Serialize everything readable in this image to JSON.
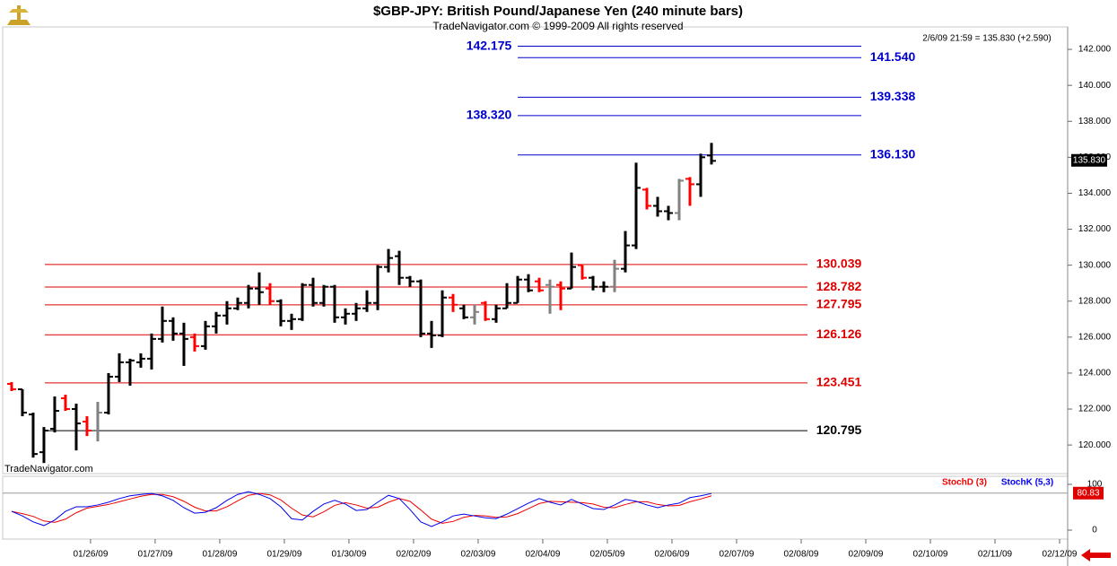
{
  "chart_data": [
    {
      "type": "ohlc",
      "title": "$GBP-JPY:  British Pound/Japanese Yen  (240 minute bars)",
      "subtitle": "TradeNavigator.com © 1999-2009 All rights reserved",
      "last_info": "2/6/09 21:59 = 135.830 (+2.590)",
      "watermark": "TradeNavigator.com",
      "x": [
        0,
        1,
        2,
        3,
        4,
        5,
        6,
        7,
        8,
        9,
        10,
        11,
        12,
        13,
        14,
        15,
        16,
        17,
        18,
        19,
        20,
        21,
        22,
        23,
        24,
        25,
        26,
        27,
        28,
        29,
        30,
        31,
        32,
        33,
        34,
        35,
        36,
        37,
        38,
        39,
        40,
        41,
        42,
        43,
        44,
        45,
        46,
        47,
        48,
        49,
        50,
        51,
        52,
        53,
        54,
        55,
        56,
        57,
        58,
        59,
        60,
        61,
        62,
        63,
        64,
        65
      ],
      "open": [
        123.4,
        123.1,
        121.7,
        119.6,
        120.9,
        122.6,
        122.0,
        121.3,
        120.8,
        121.8,
        123.8,
        124.6,
        124.6,
        124.8,
        125.9,
        126.9,
        126.2,
        126.0,
        125.5,
        126.6,
        127.2,
        127.6,
        127.9,
        128.7,
        128.7,
        128.0,
        126.9,
        127.0,
        128.9,
        127.9,
        128.8,
        127.1,
        127.3,
        127.6,
        127.9,
        129.9,
        130.5,
        129.3,
        129.1,
        126.2,
        126.1,
        128.2,
        127.6,
        127.1,
        127.9,
        127.0,
        127.6,
        127.9,
        129.2,
        129.1,
        128.9,
        128.9,
        128.7,
        130.0,
        129.3,
        128.8,
        128.8,
        129.8,
        131.1,
        134.2,
        133.3,
        133.0,
        132.9,
        134.8,
        134.5,
        136.1
      ],
      "high": [
        123.5,
        123.1,
        121.8,
        121.0,
        122.7,
        122.8,
        122.3,
        121.6,
        122.4,
        124.0,
        125.1,
        124.8,
        125.1,
        126.2,
        127.7,
        127.1,
        126.8,
        126.2,
        126.9,
        127.4,
        128.0,
        128.2,
        128.9,
        129.6,
        129.0,
        128.1,
        127.3,
        129.0,
        129.3,
        128.9,
        128.9,
        127.6,
        127.9,
        128.6,
        130.0,
        130.9,
        130.8,
        129.4,
        129.2,
        126.9,
        128.6,
        128.4,
        127.8,
        127.8,
        128.0,
        127.8,
        129.0,
        129.4,
        129.5,
        129.3,
        129.2,
        129.1,
        130.7,
        130.0,
        129.4,
        129.1,
        130.3,
        131.9,
        135.7,
        134.3,
        133.8,
        133.3,
        134.8,
        134.9,
        136.2,
        136.8
      ],
      "low": [
        123.0,
        121.6,
        119.3,
        119.0,
        120.7,
        121.9,
        119.7,
        120.5,
        120.2,
        121.7,
        123.5,
        123.3,
        124.3,
        124.2,
        125.7,
        125.8,
        124.4,
        125.2,
        125.3,
        126.2,
        126.7,
        127.5,
        127.6,
        127.8,
        127.8,
        126.6,
        126.4,
        126.9,
        127.7,
        127.7,
        126.8,
        126.7,
        126.9,
        127.4,
        127.5,
        129.6,
        128.9,
        128.8,
        126.0,
        125.4,
        126.0,
        127.4,
        127.0,
        126.7,
        126.9,
        126.8,
        127.6,
        127.9,
        128.5,
        128.5,
        127.3,
        127.5,
        128.7,
        129.2,
        128.6,
        128.5,
        128.5,
        129.6,
        130.9,
        133.1,
        132.7,
        132.5,
        132.5,
        133.3,
        133.8,
        135.6
      ],
      "close": [
        123.1,
        121.8,
        119.5,
        120.8,
        121.9,
        122.0,
        121.2,
        120.8,
        121.8,
        123.8,
        124.6,
        124.7,
        124.8,
        125.9,
        126.9,
        126.2,
        125.9,
        125.5,
        126.6,
        127.2,
        127.6,
        127.9,
        128.7,
        128.5,
        128.0,
        126.9,
        127.0,
        128.9,
        127.9,
        128.8,
        127.1,
        127.3,
        127.6,
        127.9,
        129.9,
        130.4,
        129.3,
        129.1,
        126.2,
        126.1,
        128.2,
        127.8,
        127.1,
        127.4,
        127.0,
        127.6,
        127.9,
        129.2,
        128.6,
        128.6,
        128.8,
        128.7,
        129.9,
        129.3,
        128.8,
        128.8,
        129.8,
        131.1,
        134.3,
        133.3,
        133.0,
        132.9,
        134.7,
        134.5,
        136.0,
        135.8
      ],
      "bar_colors": [
        "#ff0000",
        "#000000",
        "#000000",
        "#000000",
        "#000000",
        "#ff0000",
        "#000000",
        "#ff0000",
        "#808080",
        "#000000",
        "#000000",
        "#000000",
        "#000000",
        "#000000",
        "#000000",
        "#000000",
        "#000000",
        "#ff0000",
        "#000000",
        "#000000",
        "#000000",
        "#000000",
        "#000000",
        "#000000",
        "#ff0000",
        "#000000",
        "#000000",
        "#000000",
        "#000000",
        "#000000",
        "#000000",
        "#000000",
        "#000000",
        "#000000",
        "#000000",
        "#000000",
        "#000000",
        "#000000",
        "#000000",
        "#000000",
        "#000000",
        "#ff0000",
        "#000000",
        "#808080",
        "#ff0000",
        "#000000",
        "#000000",
        "#000000",
        "#000000",
        "#ff0000",
        "#808080",
        "#ff0000",
        "#000000",
        "#ff0000",
        "#000000",
        "#000000",
        "#808080",
        "#000000",
        "#000000",
        "#ff0000",
        "#000000",
        "#000000",
        "#808080",
        "#ff0000",
        "#000000",
        "#000000"
      ],
      "levels": [
        {
          "value": 142.175,
          "color": "#0000cc"
        },
        {
          "value": 141.54,
          "label": "141.540",
          "color": "#0000cc"
        },
        {
          "value": 139.338,
          "color": "#0000cc"
        },
        {
          "value": 138.32,
          "label": "138.320",
          "color": "#0000cc"
        },
        {
          "value": 136.13,
          "label": "136.130",
          "color": "#0000cc"
        },
        {
          "value": 130.039,
          "color": "#dd0000"
        },
        {
          "value": 128.782,
          "color": "#dd0000"
        },
        {
          "value": 127.795,
          "color": "#dd0000"
        },
        {
          "value": 126.126,
          "color": "#dd0000"
        },
        {
          "value": 123.451,
          "color": "#dd0000"
        },
        {
          "value": 120.795,
          "color": "#000000"
        }
      ],
      "last_price": {
        "value": 135.83,
        "label": "135.830"
      },
      "xlim": [
        -0.83,
        98.08
      ],
      "ylim": [
        118.41,
        143.25
      ],
      "yticks": [
        {
          "value": 120,
          "label": "120.000"
        },
        {
          "value": 122,
          "label": "122.000"
        },
        {
          "value": 124,
          "label": "124.000"
        },
        {
          "value": 126,
          "label": "126.000"
        },
        {
          "value": 128,
          "label": "128.000"
        },
        {
          "value": 130,
          "label": "130.000"
        },
        {
          "value": 132,
          "label": "132.000"
        },
        {
          "value": 134,
          "label": "134.000"
        },
        {
          "value": 136,
          "label": "136.000"
        },
        {
          "value": 138,
          "label": "138.000"
        },
        {
          "value": 140,
          "label": "140.000"
        },
        {
          "value": 142,
          "label": "142.000"
        }
      ],
      "grid": false
    },
    {
      "type": "line",
      "x": [
        0,
        1,
        2,
        3,
        4,
        5,
        6,
        7,
        8,
        9,
        10,
        11,
        12,
        13,
        14,
        15,
        16,
        17,
        18,
        19,
        20,
        21,
        22,
        23,
        24,
        25,
        26,
        27,
        28,
        29,
        30,
        31,
        32,
        33,
        34,
        35,
        36,
        37,
        38,
        39,
        40,
        41,
        42,
        43,
        44,
        45,
        46,
        47,
        48,
        49,
        50,
        51,
        52,
        53,
        54,
        55,
        56,
        57,
        58,
        59,
        60,
        61,
        62,
        63,
        64,
        65
      ],
      "series": [
        {
          "name": "StochD (3)",
          "color": "#ee0000",
          "values": [
            41,
            36,
            30,
            20,
            17,
            24,
            38,
            48,
            52,
            56,
            62,
            68,
            74,
            78,
            78,
            73,
            63,
            50,
            42,
            42,
            51,
            64,
            76,
            80,
            77,
            66,
            48,
            33,
            29,
            40,
            54,
            60,
            55,
            48,
            50,
            61,
            69,
            63,
            44,
            24,
            15,
            19,
            28,
            32,
            31,
            28,
            29,
            36,
            47,
            58,
            63,
            62,
            61,
            60,
            57,
            50,
            49,
            56,
            62,
            62,
            56,
            53,
            54,
            62,
            68,
            75
          ]
        },
        {
          "name": "StochK (5,3)",
          "color": "#0000ee",
          "values": [
            41,
            31,
            18,
            10,
            22,
            41,
            51,
            51,
            55,
            61,
            69,
            75,
            78,
            80,
            75,
            65,
            49,
            37,
            39,
            49,
            65,
            78,
            84,
            78,
            69,
            51,
            25,
            22,
            41,
            57,
            65,
            57,
            43,
            45,
            61,
            76,
            69,
            45,
            18,
            8,
            18,
            31,
            35,
            31,
            27,
            25,
            35,
            47,
            59,
            69,
            61,
            55,
            67,
            57,
            47,
            45,
            55,
            67,
            63,
            55,
            49,
            55,
            59,
            71,
            75,
            80
          ]
        }
      ],
      "current_value": 80.83,
      "xlim": [
        -0.83,
        98.08
      ],
      "ylim": [
        -19.6,
        117.6
      ],
      "yticks": [
        0,
        100
      ],
      "xticks": [
        {
          "value": 7.33,
          "label": "01/26/09"
        },
        {
          "value": 13.33,
          "label": "01/27/09"
        },
        {
          "value": 19.33,
          "label": "01/28/09"
        },
        {
          "value": 25.33,
          "label": "01/29/09"
        },
        {
          "value": 31.33,
          "label": "01/30/09"
        },
        {
          "value": 37.33,
          "label": "02/02/09"
        },
        {
          "value": 43.33,
          "label": "02/03/09"
        },
        {
          "value": 49.33,
          "label": "02/04/09"
        },
        {
          "value": 55.33,
          "label": "02/05/09"
        },
        {
          "value": 61.33,
          "label": "02/06/09"
        },
        {
          "value": 67.33,
          "label": "02/07/09"
        },
        {
          "value": 73.33,
          "label": "02/08/09"
        },
        {
          "value": 79.33,
          "label": "02/09/09"
        },
        {
          "value": 85.33,
          "label": "02/10/09"
        },
        {
          "value": 91.33,
          "label": "02/11/09"
        },
        {
          "value": 97.33,
          "label": "02/12/09"
        }
      ]
    }
  ]
}
